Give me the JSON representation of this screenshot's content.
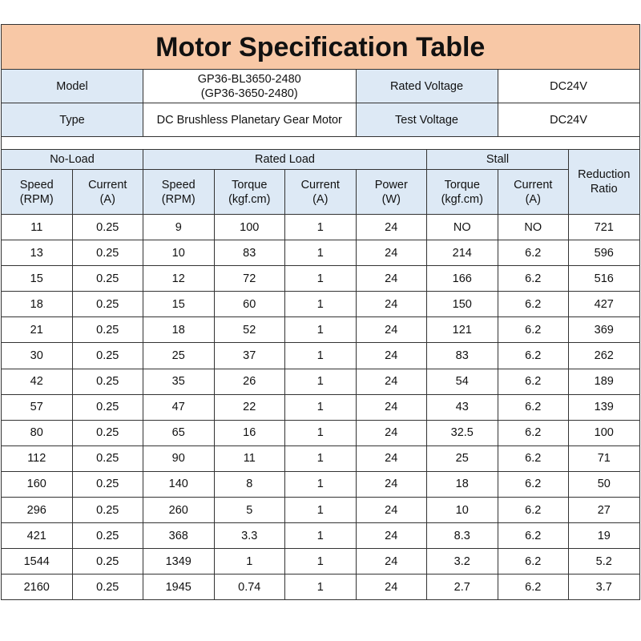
{
  "title": "Motor Specification Table",
  "info": {
    "model_label": "Model",
    "model_value_line1": "GP36-BL3650-2480",
    "model_value_line2": "(GP36-3650-2480)",
    "rated_voltage_label": "Rated Voltage",
    "rated_voltage_value": "DC24V",
    "type_label": "Type",
    "type_value": "DC Brushless Planetary Gear Motor",
    "test_voltage_label": "Test Voltage",
    "test_voltage_value": "DC24V"
  },
  "groups": {
    "no_load": "No-Load",
    "rated_load": "Rated Load",
    "stall": "Stall",
    "reduction_ratio": "Reduction Ratio"
  },
  "columns": [
    {
      "l1": "Speed",
      "l2": "(RPM)"
    },
    {
      "l1": "Current",
      "l2": "(A)"
    },
    {
      "l1": "Speed",
      "l2": "(RPM)"
    },
    {
      "l1": "Torque",
      "l2": "(kgf.cm)"
    },
    {
      "l1": "Current",
      "l2": "(A)"
    },
    {
      "l1": "Power",
      "l2": "(W)"
    },
    {
      "l1": "Torque",
      "l2": "(kgf.cm)"
    },
    {
      "l1": "Current",
      "l2": "(A)"
    }
  ],
  "rows": [
    [
      "11",
      "0.25",
      "9",
      "100",
      "1",
      "24",
      "NO",
      "NO",
      "721"
    ],
    [
      "13",
      "0.25",
      "10",
      "83",
      "1",
      "24",
      "214",
      "6.2",
      "596"
    ],
    [
      "15",
      "0.25",
      "12",
      "72",
      "1",
      "24",
      "166",
      "6.2",
      "516"
    ],
    [
      "18",
      "0.25",
      "15",
      "60",
      "1",
      "24",
      "150",
      "6.2",
      "427"
    ],
    [
      "21",
      "0.25",
      "18",
      "52",
      "1",
      "24",
      "121",
      "6.2",
      "369"
    ],
    [
      "30",
      "0.25",
      "25",
      "37",
      "1",
      "24",
      "83",
      "6.2",
      "262"
    ],
    [
      "42",
      "0.25",
      "35",
      "26",
      "1",
      "24",
      "54",
      "6.2",
      "189"
    ],
    [
      "57",
      "0.25",
      "47",
      "22",
      "1",
      "24",
      "43",
      "6.2",
      "139"
    ],
    [
      "80",
      "0.25",
      "65",
      "16",
      "1",
      "24",
      "32.5",
      "6.2",
      "100"
    ],
    [
      "112",
      "0.25",
      "90",
      "11",
      "1",
      "24",
      "25",
      "6.2",
      "71"
    ],
    [
      "160",
      "0.25",
      "140",
      "8",
      "1",
      "24",
      "18",
      "6.2",
      "50"
    ],
    [
      "296",
      "0.25",
      "260",
      "5",
      "1",
      "24",
      "10",
      "6.2",
      "27"
    ],
    [
      "421",
      "0.25",
      "368",
      "3.3",
      "1",
      "24",
      "8.3",
      "6.2",
      "19"
    ],
    [
      "1544",
      "0.25",
      "1349",
      "1",
      "1",
      "24",
      "3.2",
      "6.2",
      "5.2"
    ],
    [
      "2160",
      "0.25",
      "1945",
      "0.74",
      "1",
      "24",
      "2.7",
      "6.2",
      "3.7"
    ]
  ],
  "colors": {
    "title_bg": "#f8c8a6",
    "header_bg": "#dde9f5"
  }
}
